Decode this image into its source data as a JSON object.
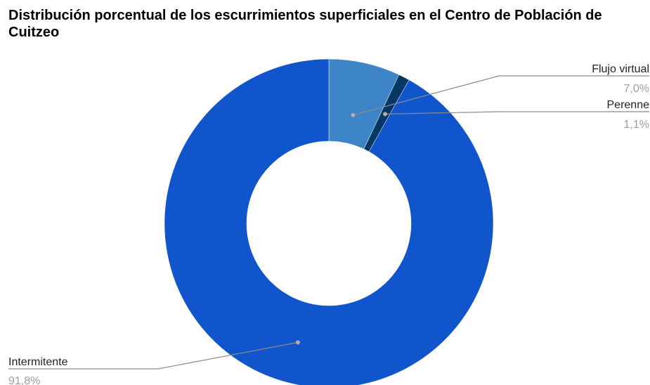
{
  "chart_data": {
    "type": "pie",
    "donut": true,
    "title": "Distribución porcentual de los escurrimientos superficiales en el Centro de Población de Cuitzeo",
    "slices": [
      {
        "label": "Flujo virtual",
        "value": 7.0,
        "value_label": "7,0%",
        "color": "#3d85c6"
      },
      {
        "label": "Perenne",
        "value": 1.1,
        "value_label": "1,1%",
        "color": "#073763"
      },
      {
        "label": "Intermitente",
        "value": 91.8,
        "value_label": "91,8%",
        "color": "#1155cc"
      }
    ],
    "legend": "none",
    "label_placement": "outside"
  }
}
